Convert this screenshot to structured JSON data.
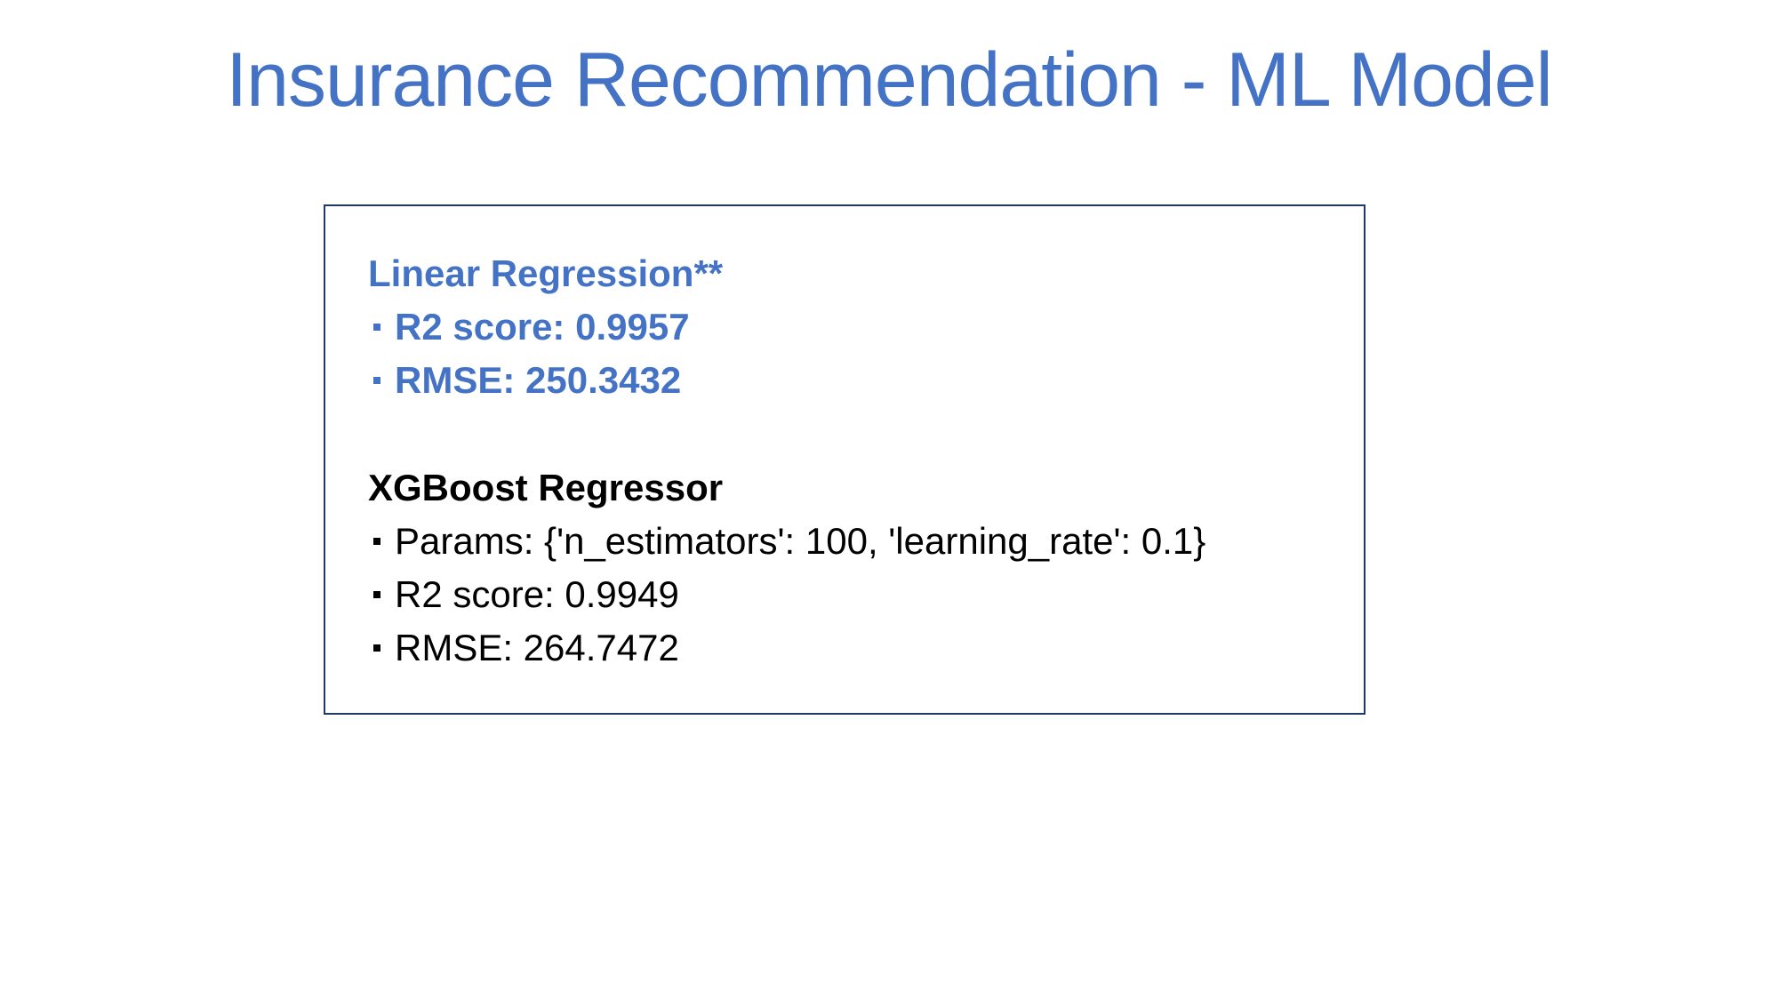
{
  "title": "Insurance Recommendation - ML Model",
  "colors": {
    "accent": "#4472C4",
    "text": "#000000",
    "box_border": "#1F3864",
    "background": "#FFFFFF"
  },
  "bullet_icon": "square-bullet-icon",
  "linear_regression": {
    "heading": "Linear Regression**",
    "items": [
      "R2 score: 0.9957",
      "RMSE: 250.3432"
    ]
  },
  "xgboost": {
    "heading": "XGBoost Regressor",
    "items": [
      "Params: {'n_estimators': 100, 'learning_rate': 0.1}",
      "R2 score: 0.9949",
      "RMSE: 264.7472"
    ]
  }
}
